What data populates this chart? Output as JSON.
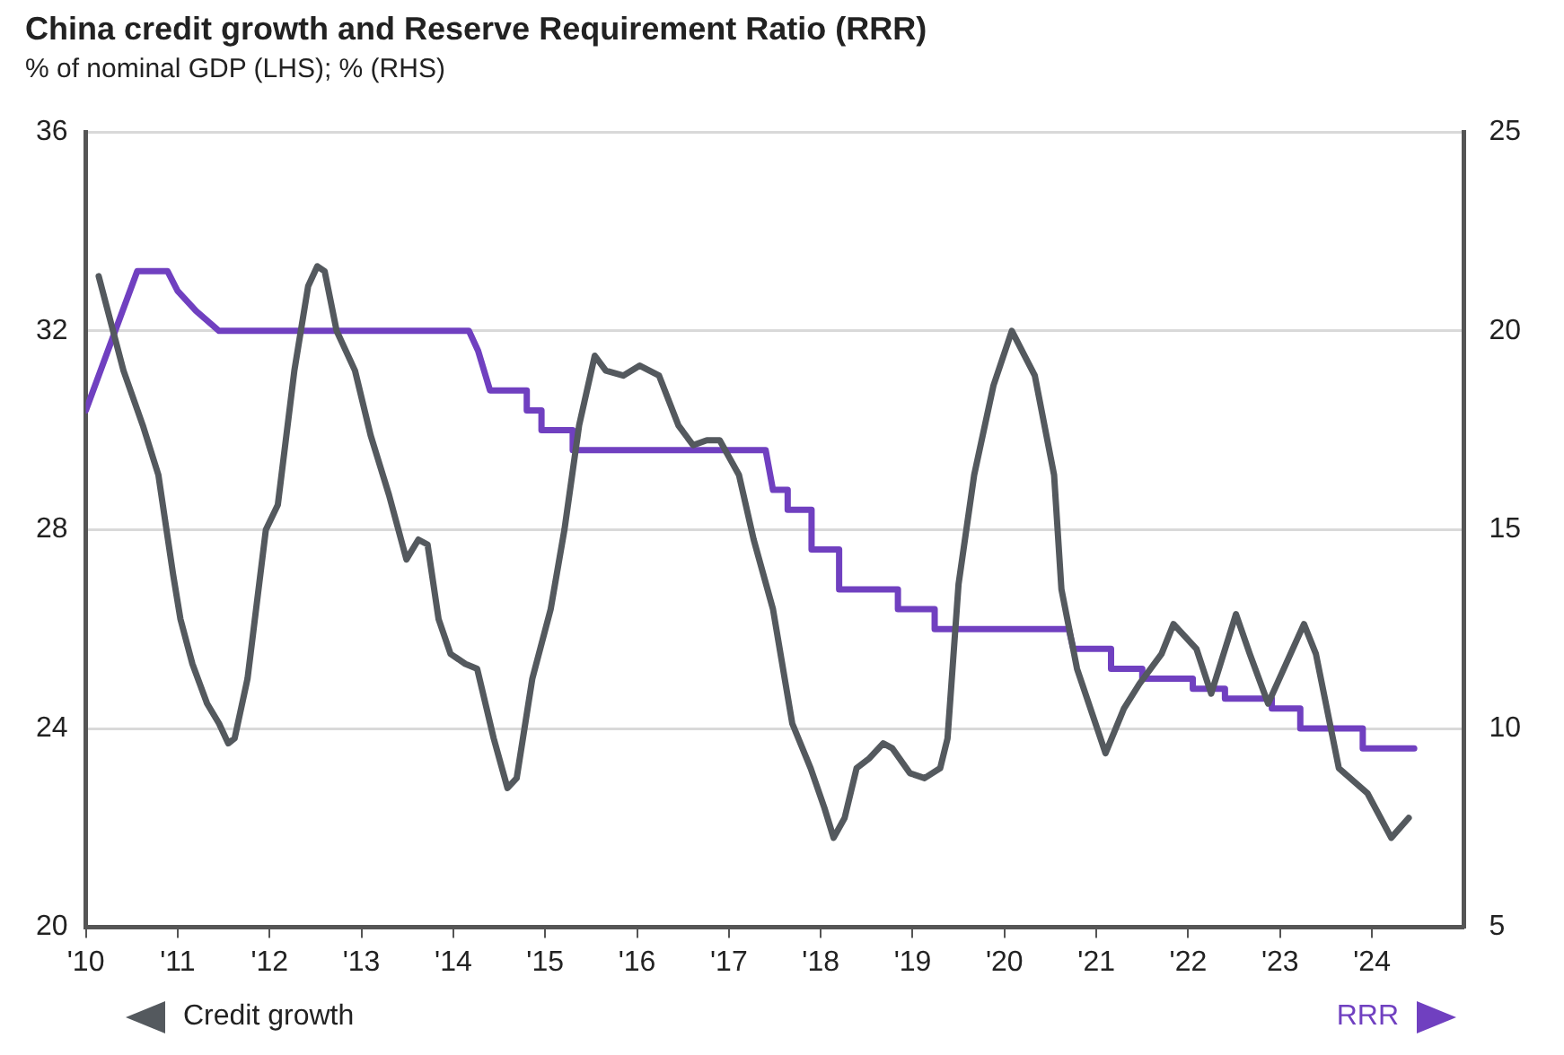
{
  "chart_data": {
    "type": "line",
    "title": "China credit growth and Reserve Requirement Ratio (RRR)",
    "subtitle": "% of nominal GDP (LHS); % (RHS)",
    "xlim": [
      2010,
      2025
    ],
    "xticks": [
      {
        "value": 2010,
        "label": "'10"
      },
      {
        "value": 2011,
        "label": "'11"
      },
      {
        "value": 2012,
        "label": "'12"
      },
      {
        "value": 2013,
        "label": "'13"
      },
      {
        "value": 2014,
        "label": "'14"
      },
      {
        "value": 2015,
        "label": "'15"
      },
      {
        "value": 2016,
        "label": "'16"
      },
      {
        "value": 2017,
        "label": "'17"
      },
      {
        "value": 2018,
        "label": "'18"
      },
      {
        "value": 2019,
        "label": "'19"
      },
      {
        "value": 2020,
        "label": "'20"
      },
      {
        "value": 2021,
        "label": "'21"
      },
      {
        "value": 2022,
        "label": "'22"
      },
      {
        "value": 2023,
        "label": "'23"
      },
      {
        "value": 2024,
        "label": "'24"
      }
    ],
    "ylim": [
      20,
      36
    ],
    "yticks": [
      20,
      24,
      28,
      32,
      36
    ],
    "y2lim": [
      5,
      25
    ],
    "y2ticks": [
      5,
      10,
      15,
      20,
      25
    ],
    "grid": "y",
    "legend": "bottom",
    "marker": "none",
    "line_style": "solid",
    "series": [
      {
        "name": "Credit growth",
        "color": "#54595e",
        "x": [
          2010.14,
          2010.41,
          2010.62,
          2010.79,
          2010.95,
          2011.03,
          2011.16,
          2011.32,
          2011.45,
          2011.55,
          2011.62,
          2011.76,
          2011.96,
          2012.09,
          2012.27,
          2012.42,
          2012.52,
          2012.6,
          2012.73,
          2012.93,
          2013.1,
          2013.3,
          2013.49,
          2013.62,
          2013.72,
          2013.84,
          2013.97,
          2014.13,
          2014.26,
          2014.44,
          2014.59,
          2014.69,
          2014.86,
          2015.06,
          2015.21,
          2015.37,
          2015.54,
          2015.66,
          2015.85,
          2016.03,
          2016.24,
          2016.45,
          2016.61,
          2016.76,
          2016.9,
          2017.11,
          2017.27,
          2017.48,
          2017.69,
          2017.89,
          2018.04,
          2018.14,
          2018.26,
          2018.39,
          2018.53,
          2018.68,
          2018.78,
          2018.97,
          2019.13,
          2019.3,
          2019.38,
          2019.5,
          2019.67,
          2019.88,
          2020.08,
          2020.33,
          2020.54,
          2020.62,
          2020.79,
          2021.1,
          2021.3,
          2021.47,
          2021.71,
          2021.84,
          2022.09,
          2022.25,
          2022.52,
          2022.67,
          2022.87,
          2023.26,
          2023.39,
          2023.64,
          2023.95,
          2024.21,
          2024.4
        ],
        "values": [
          33.1,
          31.2,
          30.1,
          29.1,
          27.1,
          26.2,
          25.3,
          24.5,
          24.1,
          23.7,
          23.8,
          25.0,
          28.0,
          28.5,
          31.2,
          32.9,
          33.3,
          33.2,
          32.0,
          31.2,
          29.9,
          28.7,
          27.4,
          27.8,
          27.7,
          26.2,
          25.5,
          25.3,
          25.2,
          23.8,
          22.8,
          23.0,
          25.0,
          26.4,
          28.0,
          30.1,
          31.5,
          31.2,
          31.1,
          31.3,
          31.1,
          30.1,
          29.7,
          29.8,
          29.8,
          29.1,
          27.8,
          26.4,
          24.1,
          23.2,
          22.4,
          21.8,
          22.2,
          23.2,
          23.4,
          23.7,
          23.6,
          23.1,
          23.0,
          23.2,
          23.8,
          26.9,
          29.1,
          30.9,
          32.0,
          31.1,
          29.1,
          26.8,
          25.2,
          23.5,
          24.4,
          24.9,
          25.5,
          26.1,
          25.6,
          24.7,
          26.3,
          25.5,
          24.5,
          26.1,
          25.5,
          23.2,
          22.7,
          21.8,
          22.2
        ]
      },
      {
        "name": "RRR",
        "color": "#7040c0",
        "axis": "y2",
        "x": [
          2010.0,
          2010.56,
          2010.89,
          2011.0,
          2011.0,
          2011.2,
          2011.2,
          2011.45,
          2011.45,
          2014.17,
          2014.27,
          2014.4,
          2014.55,
          2014.8,
          2014.8,
          2014.96,
          2014.96,
          2015.3,
          2015.3,
          2017.4,
          2017.48,
          2017.64,
          2017.64,
          2017.9,
          2017.9,
          2018.2,
          2018.2,
          2018.84,
          2018.84,
          2019.24,
          2019.24,
          2020.7,
          2020.75,
          2021.16,
          2021.16,
          2021.5,
          2021.5,
          2022.05,
          2022.05,
          2022.4,
          2022.4,
          2022.91,
          2022.91,
          2023.22,
          2023.22,
          2023.9,
          2023.9,
          2024.46
        ],
        "values": [
          18.0,
          21.5,
          21.5,
          21.0,
          21.0,
          20.5,
          20.5,
          20.0,
          20.0,
          20.0,
          19.5,
          18.5,
          18.5,
          18.5,
          18.0,
          18.0,
          17.5,
          17.5,
          17.0,
          17.0,
          16.0,
          16.0,
          15.5,
          15.5,
          14.5,
          14.5,
          13.5,
          13.5,
          13.0,
          13.0,
          12.5,
          12.5,
          12.0,
          12.0,
          11.5,
          11.5,
          11.25,
          11.25,
          11.0,
          11.0,
          10.75,
          10.75,
          10.5,
          10.5,
          10.0,
          10.0,
          9.5,
          9.5
        ]
      }
    ]
  }
}
